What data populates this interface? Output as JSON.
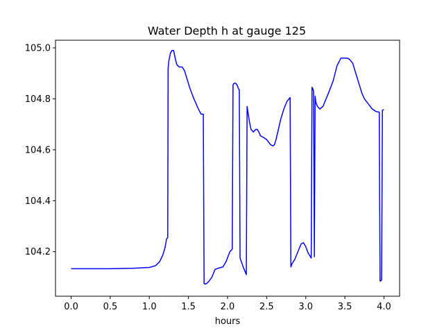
{
  "chart_data": {
    "type": "line",
    "title": "Water Depth h at gauge 125",
    "xlabel": "hours",
    "ylabel": "",
    "xlim": [
      -0.2,
      4.2
    ],
    "ylim": [
      104.025,
      105.03
    ],
    "xticks": [
      0.0,
      0.5,
      1.0,
      1.5,
      2.0,
      2.5,
      3.0,
      3.5,
      4.0
    ],
    "xtick_labels": [
      "0.0",
      "0.5",
      "1.0",
      "1.5",
      "2.0",
      "2.5",
      "3.0",
      "3.5",
      "4.0"
    ],
    "yticks": [
      104.2,
      104.4,
      104.6,
      104.8,
      105.0
    ],
    "ytick_labels": [
      "104.2",
      "104.4",
      "104.6",
      "104.8",
      "105.0"
    ],
    "grid": false,
    "legend": "none",
    "series": [
      {
        "color": "#0000ff",
        "x": [
          0.0,
          0.5,
          0.8,
          1.0,
          1.08,
          1.13,
          1.17,
          1.2,
          1.22,
          1.235,
          1.24,
          1.25,
          1.27,
          1.29,
          1.31,
          1.33,
          1.35,
          1.38,
          1.42,
          1.45,
          1.48,
          1.52,
          1.57,
          1.62,
          1.66,
          1.69,
          1.7,
          1.71,
          1.73,
          1.76,
          1.8,
          1.84,
          1.88,
          1.94,
          1.98,
          2.03,
          2.06,
          2.07,
          2.08,
          2.1,
          2.12,
          2.14,
          2.15,
          2.16,
          2.2,
          2.24,
          2.25,
          2.26,
          2.28,
          2.3,
          2.33,
          2.36,
          2.38,
          2.4,
          2.42,
          2.45,
          2.5,
          2.55,
          2.58,
          2.6,
          2.62,
          2.65,
          2.68,
          2.72,
          2.76,
          2.8,
          2.81,
          2.82,
          2.86,
          2.9,
          2.94,
          2.97,
          3.0,
          3.03,
          3.06,
          3.07,
          3.08,
          3.09,
          3.1,
          3.11,
          3.12,
          3.13,
          3.15,
          3.18,
          3.22,
          3.26,
          3.3,
          3.35,
          3.4,
          3.45,
          3.5,
          3.53,
          3.56,
          3.6,
          3.64,
          3.68,
          3.72,
          3.75,
          3.8,
          3.85,
          3.9,
          3.93,
          3.94,
          3.95,
          3.96,
          3.97,
          3.98,
          4.0
        ],
        "y": [
          104.133,
          104.133,
          104.135,
          104.138,
          104.145,
          104.16,
          104.185,
          104.215,
          104.25,
          104.255,
          104.92,
          104.95,
          104.98,
          104.99,
          104.99,
          104.96,
          104.935,
          104.925,
          104.925,
          104.91,
          104.88,
          104.84,
          104.8,
          104.765,
          104.74,
          104.74,
          104.075,
          104.073,
          104.074,
          104.083,
          104.1,
          104.13,
          104.135,
          104.14,
          104.16,
          104.2,
          104.21,
          104.855,
          104.86,
          104.862,
          104.855,
          104.84,
          104.835,
          104.175,
          104.14,
          104.11,
          104.77,
          104.75,
          104.71,
          104.68,
          104.67,
          104.68,
          104.68,
          104.67,
          104.655,
          104.65,
          104.64,
          104.62,
          104.615,
          104.62,
          104.64,
          104.68,
          104.72,
          104.76,
          104.79,
          104.805,
          104.14,
          104.15,
          104.17,
          104.2,
          104.23,
          104.235,
          104.22,
          104.195,
          104.18,
          104.175,
          104.845,
          104.84,
          104.83,
          104.18,
          104.81,
          104.785,
          104.77,
          104.76,
          104.77,
          104.8,
          104.83,
          104.87,
          104.93,
          104.96,
          104.96,
          104.96,
          104.955,
          104.94,
          104.9,
          104.86,
          104.82,
          104.8,
          104.78,
          104.76,
          104.75,
          104.748,
          104.748,
          104.085,
          104.085,
          104.09,
          104.755,
          104.758
        ]
      }
    ]
  }
}
